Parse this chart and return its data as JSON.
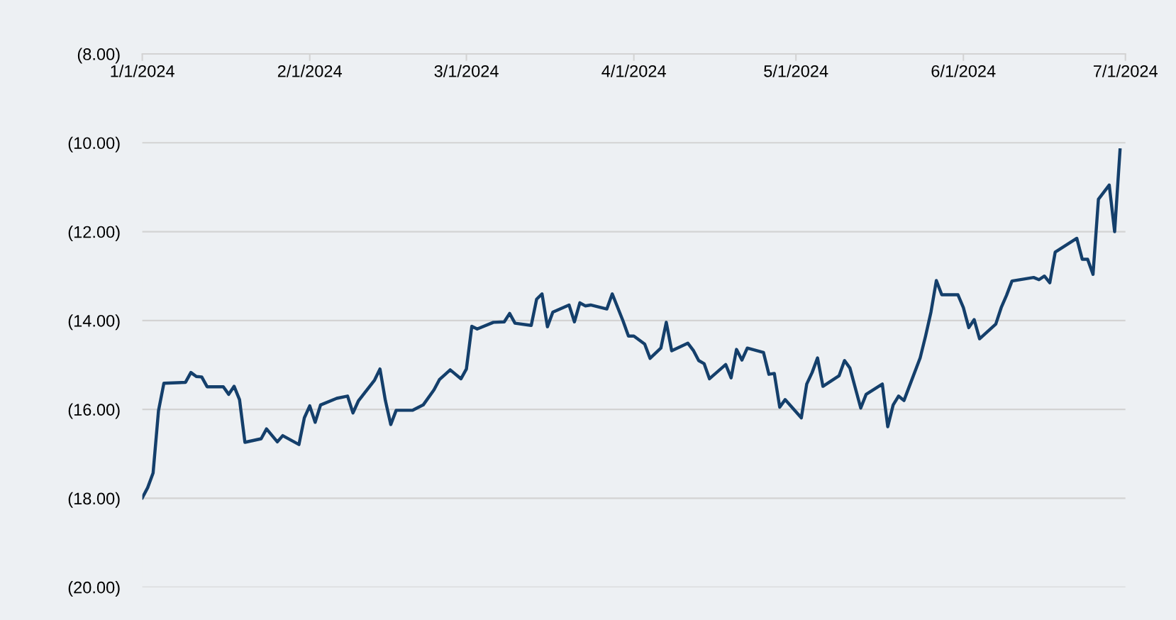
{
  "chart_data": {
    "type": "line",
    "x": [
      "2024-01-01",
      "2024-01-02",
      "2024-01-03",
      "2024-01-04",
      "2024-01-05",
      "2024-01-09",
      "2024-01-10",
      "2024-01-11",
      "2024-01-12",
      "2024-01-13",
      "2024-01-16",
      "2024-01-17",
      "2024-01-18",
      "2024-01-19",
      "2024-01-20",
      "2024-01-23",
      "2024-01-24",
      "2024-01-26",
      "2024-01-27",
      "2024-01-30",
      "2024-01-31",
      "2024-02-01",
      "2024-02-02",
      "2024-02-03",
      "2024-02-06",
      "2024-02-08",
      "2024-02-09",
      "2024-02-10",
      "2024-02-13",
      "2024-02-14",
      "2024-02-15",
      "2024-02-16",
      "2024-02-17",
      "2024-02-20",
      "2024-02-22",
      "2024-02-24",
      "2024-02-25",
      "2024-02-27",
      "2024-02-29",
      "2024-03-01",
      "2024-03-02",
      "2024-03-03",
      "2024-03-06",
      "2024-03-08",
      "2024-03-09",
      "2024-03-10",
      "2024-03-13",
      "2024-03-14",
      "2024-03-15",
      "2024-03-16",
      "2024-03-17",
      "2024-03-20",
      "2024-03-21",
      "2024-03-22",
      "2024-03-23",
      "2024-03-24",
      "2024-03-27",
      "2024-03-28",
      "2024-03-30",
      "2024-03-31",
      "2024-04-01",
      "2024-04-03",
      "2024-04-04",
      "2024-04-06",
      "2024-04-07",
      "2024-04-08",
      "2024-04-11",
      "2024-04-12",
      "2024-04-13",
      "2024-04-14",
      "2024-04-15",
      "2024-04-18",
      "2024-04-19",
      "2024-04-20",
      "2024-04-21",
      "2024-04-22",
      "2024-04-25",
      "2024-04-26",
      "2024-04-27",
      "2024-04-28",
      "2024-04-29",
      "2024-05-02",
      "2024-05-03",
      "2024-05-04",
      "2024-05-05",
      "2024-05-06",
      "2024-05-09",
      "2024-05-10",
      "2024-05-11",
      "2024-05-13",
      "2024-05-14",
      "2024-05-17",
      "2024-05-18",
      "2024-05-19",
      "2024-05-20",
      "2024-05-21",
      "2024-05-24",
      "2024-05-25",
      "2024-05-26",
      "2024-05-27",
      "2024-05-28",
      "2024-05-31",
      "2024-06-01",
      "2024-06-02",
      "2024-06-03",
      "2024-06-04",
      "2024-06-07",
      "2024-06-08",
      "2024-06-09",
      "2024-06-10",
      "2024-06-14",
      "2024-06-15",
      "2024-06-16",
      "2024-06-17",
      "2024-06-18",
      "2024-06-22",
      "2024-06-23",
      "2024-06-24",
      "2024-06-25",
      "2024-06-26",
      "2024-06-28",
      "2024-06-29",
      "2024-06-30"
    ],
    "series": [
      {
        "color": "#143f6b",
        "values": [
          -17.99,
          -17.76,
          -17.43,
          -16.03,
          -15.41,
          -15.39,
          -15.17,
          -15.26,
          -15.27,
          -15.49,
          -15.49,
          -15.66,
          -15.48,
          -15.78,
          -16.74,
          -16.66,
          -16.44,
          -16.73,
          -16.59,
          -16.79,
          -16.19,
          -15.92,
          -16.29,
          -15.9,
          -15.75,
          -15.7,
          -16.08,
          -15.81,
          -15.34,
          -15.09,
          -15.8,
          -16.34,
          -16.02,
          -16.02,
          -15.9,
          -15.56,
          -15.33,
          -15.11,
          -15.31,
          -15.09,
          -14.13,
          -14.19,
          -14.04,
          -14.03,
          -13.84,
          -14.06,
          -14.11,
          -13.52,
          -13.4,
          -14.14,
          -13.81,
          -13.65,
          -14.03,
          -13.6,
          -13.67,
          -13.65,
          -13.74,
          -13.4,
          -14.01,
          -14.35,
          -14.35,
          -14.53,
          -14.85,
          -14.62,
          -14.04,
          -14.68,
          -14.51,
          -14.67,
          -14.9,
          -14.97,
          -15.31,
          -14.99,
          -15.29,
          -14.65,
          -14.89,
          -14.62,
          -14.72,
          -15.21,
          -15.19,
          -15.95,
          -15.78,
          -16.19,
          -15.43,
          -15.17,
          -14.84,
          -15.48,
          -15.24,
          -14.9,
          -15.07,
          -15.97,
          -15.66,
          -15.43,
          -16.39,
          -15.9,
          -15.7,
          -15.8,
          -14.84,
          -14.35,
          -13.81,
          -13.1,
          -13.42,
          -13.42,
          -13.71,
          -14.16,
          -13.98,
          -14.41,
          -14.08,
          -13.71,
          -13.43,
          -13.11,
          -13.03,
          -13.08,
          -13.0,
          -13.15,
          -12.46,
          -12.15,
          -12.62,
          -12.62,
          -12.96,
          -11.27,
          -10.95,
          -12.0,
          -10.16
        ]
      }
    ],
    "xlim": [
      "2024-01-01",
      "2024-07-01"
    ],
    "xticks": [
      {
        "value": "2024-01-01",
        "label": "1/1/2024"
      },
      {
        "value": "2024-02-01",
        "label": "2/1/2024"
      },
      {
        "value": "2024-03-01",
        "label": "3/1/2024"
      },
      {
        "value": "2024-04-01",
        "label": "4/1/2024"
      },
      {
        "value": "2024-05-01",
        "label": "5/1/2024"
      },
      {
        "value": "2024-06-01",
        "label": "6/1/2024"
      },
      {
        "value": "2024-07-01",
        "label": "7/1/2024"
      }
    ],
    "ylim": [
      -20,
      -8
    ],
    "yticks": [
      {
        "value": -20,
        "label": "(20.00)"
      },
      {
        "value": -18,
        "label": "(18.00)"
      },
      {
        "value": -16,
        "label": "(16.00)"
      },
      {
        "value": -14,
        "label": "(14.00)"
      },
      {
        "value": -12,
        "label": "(12.00)"
      },
      {
        "value": -10,
        "label": "(10.00)"
      },
      {
        "value": -8,
        "label": "(8.00)"
      }
    ],
    "grid": "y",
    "marker": "none",
    "line_style": "solid"
  }
}
